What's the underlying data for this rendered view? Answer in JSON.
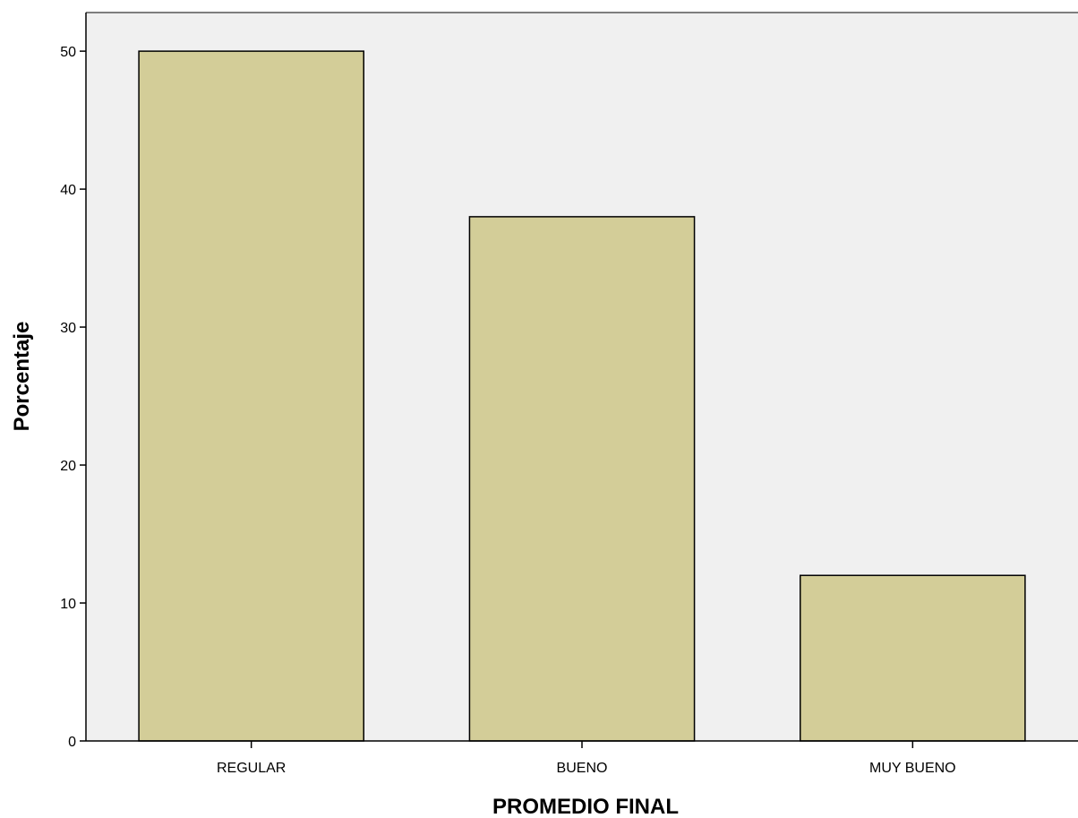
{
  "chart_data": {
    "type": "bar",
    "categories": [
      "REGULAR",
      "BUENO",
      "MUY BUENO"
    ],
    "values": [
      50,
      38,
      12
    ],
    "xlabel": "PROMEDIO FINAL",
    "ylabel": "Porcentaje",
    "ylim": [
      0,
      52.8
    ],
    "yticks": [
      0,
      10,
      20,
      30,
      40,
      50
    ],
    "grid": false,
    "legend": "none",
    "colors": {
      "bar_fill": "#d3cd98",
      "bar_stroke": "#000000",
      "plot_background": "#f0f0f0",
      "axis": "#000000"
    }
  }
}
